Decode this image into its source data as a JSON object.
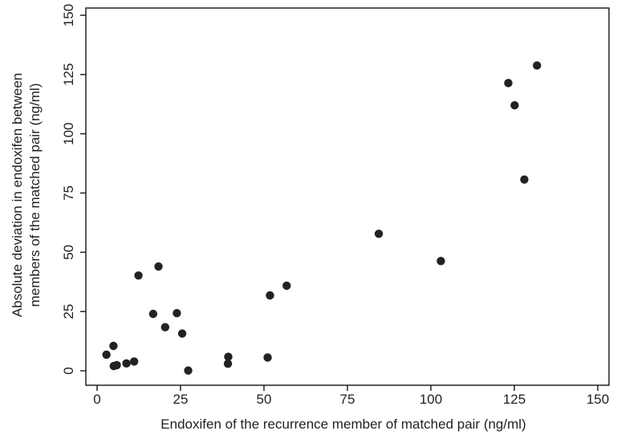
{
  "chart_data": {
    "type": "scatter",
    "title": "",
    "xlabel": "Endoxifen of the recurrence member of matched pair (ng/ml)",
    "ylabel_line1": "Absolute deviation in endoxifen between",
    "ylabel_line2": "members of the matched pair (ng/ml)",
    "xlim": [
      0,
      150
    ],
    "ylim": [
      0,
      150
    ],
    "xticks": [
      0,
      25,
      50,
      75,
      100,
      125,
      150
    ],
    "yticks": [
      0,
      25,
      50,
      75,
      100,
      125,
      150
    ],
    "grid": false,
    "marker_color": "#222222",
    "points": [
      {
        "x": 2.8,
        "y": 6.8
      },
      {
        "x": 4.9,
        "y": 10.5
      },
      {
        "x": 5.0,
        "y": 2.0
      },
      {
        "x": 5.9,
        "y": 2.4
      },
      {
        "x": 8.8,
        "y": 3.1
      },
      {
        "x": 11.1,
        "y": 3.9
      },
      {
        "x": 12.4,
        "y": 40.2
      },
      {
        "x": 16.8,
        "y": 24.0
      },
      {
        "x": 18.4,
        "y": 44.0
      },
      {
        "x": 20.4,
        "y": 18.4
      },
      {
        "x": 23.9,
        "y": 24.3
      },
      {
        "x": 25.5,
        "y": 15.7
      },
      {
        "x": 27.3,
        "y": 0.1
      },
      {
        "x": 39.2,
        "y": 3.0
      },
      {
        "x": 39.3,
        "y": 5.9
      },
      {
        "x": 51.1,
        "y": 5.6
      },
      {
        "x": 51.8,
        "y": 31.8
      },
      {
        "x": 56.8,
        "y": 35.9
      },
      {
        "x": 84.4,
        "y": 57.8
      },
      {
        "x": 103.0,
        "y": 46.3
      },
      {
        "x": 123.2,
        "y": 121.4
      },
      {
        "x": 125.1,
        "y": 112.0
      },
      {
        "x": 128.0,
        "y": 80.7
      },
      {
        "x": 131.8,
        "y": 128.8
      }
    ]
  }
}
